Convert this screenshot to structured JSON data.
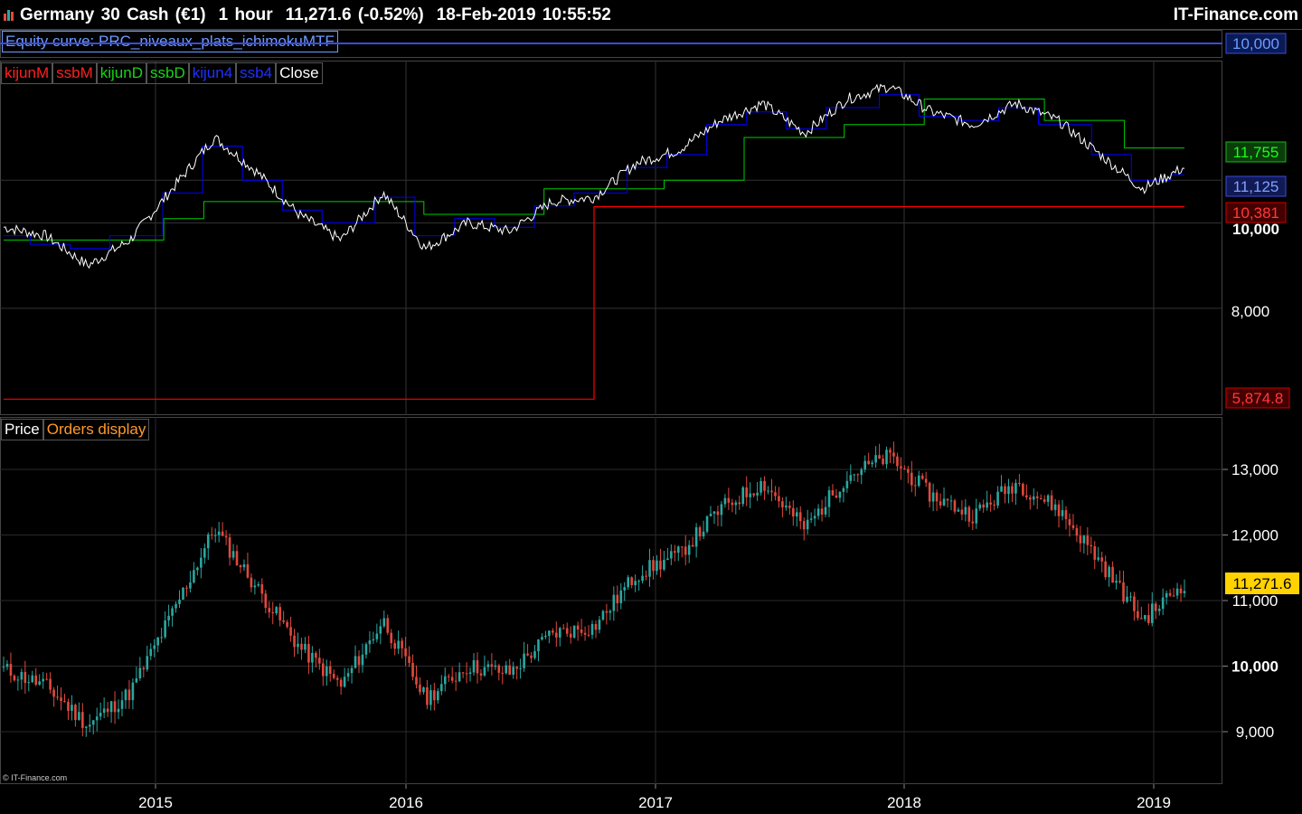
{
  "header": {
    "instrument": "Germany 30 Cash (€1)",
    "timeframe": "1 hour",
    "quote": "11,271.6 (-0.52%)",
    "datetime": "18-Feb-2019 10:55:52",
    "brand": "IT-Finance.com"
  },
  "equity_panel": {
    "label": "Equity curve: PRC_niveaux_plats_ichimokuMTF",
    "value_tag": "10,000"
  },
  "indicator_panel": {
    "legend": [
      "kijunM",
      "ssbM",
      "kijunD",
      "ssbD",
      "kijun4",
      "ssb4",
      "Close"
    ],
    "tags": {
      "green": "11,755",
      "blue": "11,125",
      "red": "10,381",
      "red_low": "5,874.8",
      "level": "10,000",
      "lower": "8,000"
    }
  },
  "price_panel": {
    "legend_price": "Price",
    "legend_orders": "Orders display",
    "last_tag": "11,271.6",
    "ticks": [
      "13,000",
      "12,000",
      "11,000",
      "10,000",
      "9,000"
    ]
  },
  "x_axis": [
    "2015",
    "2016",
    "2017",
    "2018",
    "2019"
  ],
  "copyright": "© IT-Finance.com",
  "colors": {
    "kijunM": "#ff0000",
    "ssbM": "#ff0000",
    "kijunD": "#00cc00",
    "ssbD": "#00cc00",
    "kijun4": "#0000ff",
    "ssb4": "#0000ff",
    "close": "#ffffff",
    "up": "#2aa7a0",
    "down": "#e0493c",
    "last_price": "#ffd200"
  },
  "chart_data": [
    {
      "type": "line",
      "title": "Equity curve: PRC_niveaux_plats_ichimokuMTF",
      "series": [
        {
          "name": "Equity curve",
          "values": [
            10000,
            10000
          ]
        }
      ],
      "ylim": [
        9990,
        10010
      ]
    },
    {
      "type": "line",
      "x": [
        "2014-06",
        "2014-08",
        "2014-10",
        "2014-12",
        "2015-02",
        "2015-04",
        "2015-06",
        "2015-08",
        "2015-10",
        "2015-12",
        "2016-02",
        "2016-04",
        "2016-06",
        "2016-08",
        "2016-10",
        "2016-12",
        "2017-02",
        "2017-04",
        "2017-06",
        "2017-08",
        "2017-10",
        "2017-12",
        "2018-02",
        "2018-04",
        "2018-06",
        "2018-08",
        "2018-10",
        "2018-12",
        "2019-02"
      ],
      "series": [
        {
          "name": "Close",
          "values": [
            9900,
            9700,
            9000,
            9600,
            10800,
            12000,
            11200,
            10200,
            9600,
            10700,
            9400,
            10000,
            9800,
            10500,
            10600,
            11400,
            11700,
            12400,
            12800,
            12100,
            12900,
            13200,
            12600,
            12300,
            12800,
            12400,
            11600,
            10800,
            11300
          ]
        },
        {
          "name": "kijunM",
          "values": [
            5874.8,
            5874.8,
            5874.8,
            5874.8,
            5874.8,
            5874.8,
            5874.8,
            5874.8,
            5874.8,
            5874.8,
            5874.8,
            5874.8,
            5874.8,
            5874.8,
            10381,
            10381,
            10381,
            10381,
            10381,
            10381,
            10381,
            10381,
            10381,
            10381,
            10381,
            10381,
            10381,
            10381,
            10381
          ]
        },
        {
          "name": "ssbD",
          "values": [
            9600,
            9600,
            9600,
            9600,
            10100,
            10500,
            10500,
            10500,
            10500,
            10500,
            10200,
            10200,
            10200,
            10800,
            10800,
            10800,
            11000,
            11000,
            12000,
            12000,
            12300,
            12300,
            12900,
            12900,
            12900,
            12400,
            12400,
            11755,
            11755
          ]
        },
        {
          "name": "kijun4",
          "values": [
            9700,
            9500,
            9400,
            9700,
            10700,
            11800,
            11000,
            10300,
            10000,
            10600,
            9700,
            10100,
            9900,
            10400,
            10700,
            11300,
            11600,
            12300,
            12600,
            12200,
            12700,
            13000,
            12500,
            12400,
            12700,
            12300,
            11600,
            11000,
            11125
          ]
        }
      ],
      "ylim": [
        5500,
        13800
      ]
    },
    {
      "type": "candlestick",
      "x": [
        "2014-06",
        "2014-08",
        "2014-10",
        "2014-12",
        "2015-02",
        "2015-04",
        "2015-06",
        "2015-08",
        "2015-10",
        "2015-12",
        "2016-02",
        "2016-04",
        "2016-06",
        "2016-08",
        "2016-10",
        "2016-12",
        "2017-02",
        "2017-04",
        "2017-06",
        "2017-08",
        "2017-10",
        "2017-12",
        "2018-02",
        "2018-04",
        "2018-06",
        "2018-08",
        "2018-10",
        "2018-12",
        "2019-02"
      ],
      "series": [
        {
          "name": "Price",
          "values": [
            9950,
            9700,
            9100,
            9600,
            10800,
            12100,
            11200,
            10300,
            9700,
            10700,
            9500,
            10000,
            9900,
            10500,
            10600,
            11400,
            11700,
            12400,
            12800,
            12100,
            12900,
            13200,
            12600,
            12300,
            12800,
            12400,
            11600,
            10700,
            11271.6
          ]
        }
      ],
      "ylim": [
        8200,
        13800
      ]
    }
  ]
}
